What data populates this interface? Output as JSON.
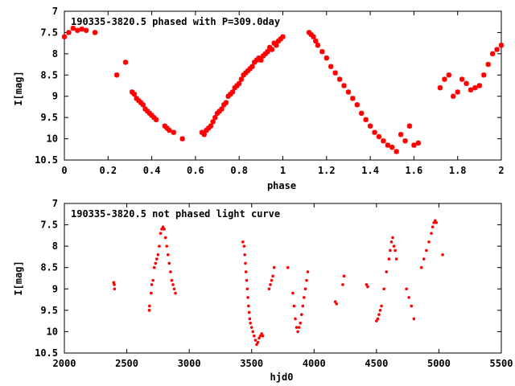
{
  "chart_data": [
    {
      "type": "scatter",
      "title": "190335-3820.5 phased with P=309.0day",
      "xlabel": "phase",
      "ylabel": "I[mag]",
      "xlim": [
        0,
        2
      ],
      "ylim": [
        7,
        10.5
      ],
      "y_inverted": true,
      "x_ticks": [
        "0",
        "0.2",
        "0.4",
        "0.6",
        "0.8",
        "1",
        "1.2",
        "1.4",
        "1.6",
        "1.8",
        "2"
      ],
      "y_ticks": [
        "7",
        "7.5",
        "8",
        "8.5",
        "9",
        "9.5",
        "10",
        "10.5"
      ],
      "marker": "star",
      "color": "#ff0000",
      "series": [
        {
          "x": [
            0.0,
            0.02,
            0.04,
            0.06,
            0.08,
            0.1,
            0.14,
            0.24,
            0.28,
            0.31,
            0.32,
            0.33,
            0.34,
            0.35,
            0.36,
            0.37,
            0.38,
            0.39,
            0.4,
            0.41,
            0.42,
            0.46,
            0.47,
            0.48,
            0.5,
            0.54,
            0.63,
            0.64,
            0.65,
            0.66,
            0.67,
            0.68,
            0.69,
            0.7,
            0.71,
            0.72,
            0.73,
            0.74,
            0.75,
            0.76,
            0.77,
            0.78,
            0.79,
            0.8,
            0.81,
            0.82,
            0.83,
            0.84,
            0.85,
            0.86,
            0.87,
            0.88,
            0.89,
            0.9,
            0.91,
            0.92,
            0.93,
            0.94,
            0.95,
            0.96,
            0.97,
            0.98,
            0.99,
            1.0,
            1.12,
            1.13,
            1.14,
            1.15,
            1.16,
            1.18,
            1.2,
            1.22,
            1.24,
            1.26,
            1.28,
            1.3,
            1.32,
            1.34,
            1.36,
            1.38,
            1.4,
            1.42,
            1.44,
            1.46,
            1.48,
            1.5,
            1.52,
            1.54,
            1.56,
            1.58,
            1.6,
            1.62,
            1.72,
            1.74,
            1.76,
            1.78,
            1.8,
            1.82,
            1.84,
            1.86,
            1.88,
            1.9,
            1.92,
            1.94,
            1.96,
            1.98,
            2.0
          ],
          "y": [
            7.6,
            7.5,
            7.4,
            7.45,
            7.42,
            7.45,
            7.5,
            8.5,
            8.2,
            8.9,
            8.95,
            9.05,
            9.1,
            9.15,
            9.2,
            9.3,
            9.35,
            9.4,
            9.45,
            9.5,
            9.55,
            9.7,
            9.75,
            9.8,
            9.85,
            10.0,
            9.85,
            9.9,
            9.8,
            9.75,
            9.7,
            9.6,
            9.5,
            9.4,
            9.35,
            9.3,
            9.2,
            9.15,
            9.0,
            8.95,
            8.9,
            8.8,
            8.75,
            8.7,
            8.6,
            8.5,
            8.45,
            8.4,
            8.35,
            8.3,
            8.2,
            8.15,
            8.1,
            8.15,
            8.05,
            8.0,
            7.95,
            7.85,
            7.9,
            7.75,
            7.8,
            7.7,
            7.65,
            7.6,
            7.5,
            7.55,
            7.6,
            7.7,
            7.8,
            7.95,
            8.1,
            8.3,
            8.45,
            8.6,
            8.75,
            8.9,
            9.05,
            9.2,
            9.4,
            9.55,
            9.7,
            9.85,
            9.95,
            10.05,
            10.15,
            10.2,
            10.3,
            9.9,
            10.05,
            9.7,
            10.15,
            10.1,
            8.8,
            8.6,
            8.5,
            9.0,
            8.9,
            8.6,
            8.7,
            8.85,
            8.8,
            8.75,
            8.5,
            8.25,
            8.0,
            7.9,
            7.8
          ]
        }
      ]
    },
    {
      "type": "scatter",
      "title": "190335-3820.5 not phased light curve",
      "xlabel": "hjd0",
      "ylabel": "I[mag]",
      "xlim": [
        2000,
        5500
      ],
      "ylim": [
        7,
        10.5
      ],
      "y_inverted": true,
      "x_ticks": [
        "2000",
        "2500",
        "3000",
        "3500",
        "4000",
        "4500",
        "5000",
        "5500"
      ],
      "y_ticks": [
        "7",
        "7.5",
        "8",
        "8.5",
        "9",
        "9.5",
        "10",
        "10.5"
      ],
      "marker": "dot",
      "color": "#ff0000",
      "series": [
        {
          "x": [
            2395,
            2400,
            2402,
            2680,
            2682,
            2695,
            2700,
            2710,
            2720,
            2730,
            2740,
            2750,
            2760,
            2770,
            2780,
            2790,
            2800,
            2810,
            2820,
            2830,
            2840,
            2850,
            2860,
            2870,
            2880,
            2890,
            3430,
            3440,
            3445,
            3450,
            3455,
            3460,
            3465,
            3470,
            3475,
            3480,
            3485,
            3490,
            3500,
            3510,
            3520,
            3530,
            3540,
            3550,
            3560,
            3570,
            3580,
            3590,
            3640,
            3650,
            3660,
            3670,
            3680,
            3790,
            3830,
            3840,
            3850,
            3860,
            3870,
            3880,
            3890,
            3900,
            3910,
            3920,
            3930,
            3940,
            3950,
            4170,
            4180,
            4230,
            4240,
            4420,
            4430,
            4500,
            4510,
            4520,
            4530,
            4540,
            4560,
            4580,
            4600,
            4610,
            4620,
            4630,
            4640,
            4650,
            4660,
            4740,
            4760,
            4780,
            4800,
            4860,
            4880,
            4900,
            4920,
            4940,
            4950,
            4960,
            4970,
            4980,
            5030
          ],
          "y": [
            8.85,
            8.9,
            9.0,
            9.5,
            9.4,
            9.1,
            8.9,
            8.8,
            8.5,
            8.4,
            8.3,
            8.2,
            8.0,
            7.7,
            7.6,
            7.55,
            7.6,
            7.8,
            8.0,
            8.2,
            8.4,
            8.6,
            8.8,
            8.9,
            9.0,
            9.1,
            7.9,
            8.0,
            8.2,
            8.4,
            8.6,
            8.8,
            9.0,
            9.2,
            9.4,
            9.55,
            9.7,
            9.8,
            9.9,
            10.0,
            10.1,
            10.2,
            10.3,
            10.25,
            10.15,
            10.1,
            10.05,
            10.1,
            9.0,
            8.9,
            8.8,
            8.7,
            8.5,
            8.5,
            9.1,
            9.4,
            9.7,
            9.9,
            10.0,
            9.9,
            9.8,
            9.6,
            9.4,
            9.2,
            9.0,
            8.8,
            8.6,
            9.3,
            9.35,
            8.9,
            8.7,
            8.9,
            8.95,
            9.75,
            9.7,
            9.6,
            9.5,
            9.4,
            9.0,
            8.6,
            8.3,
            8.1,
            7.9,
            7.8,
            8.0,
            8.1,
            8.3,
            9.0,
            9.2,
            9.4,
            9.7,
            8.5,
            8.3,
            8.1,
            7.9,
            7.7,
            7.55,
            7.45,
            7.4,
            7.45,
            8.2
          ]
        }
      ]
    }
  ]
}
